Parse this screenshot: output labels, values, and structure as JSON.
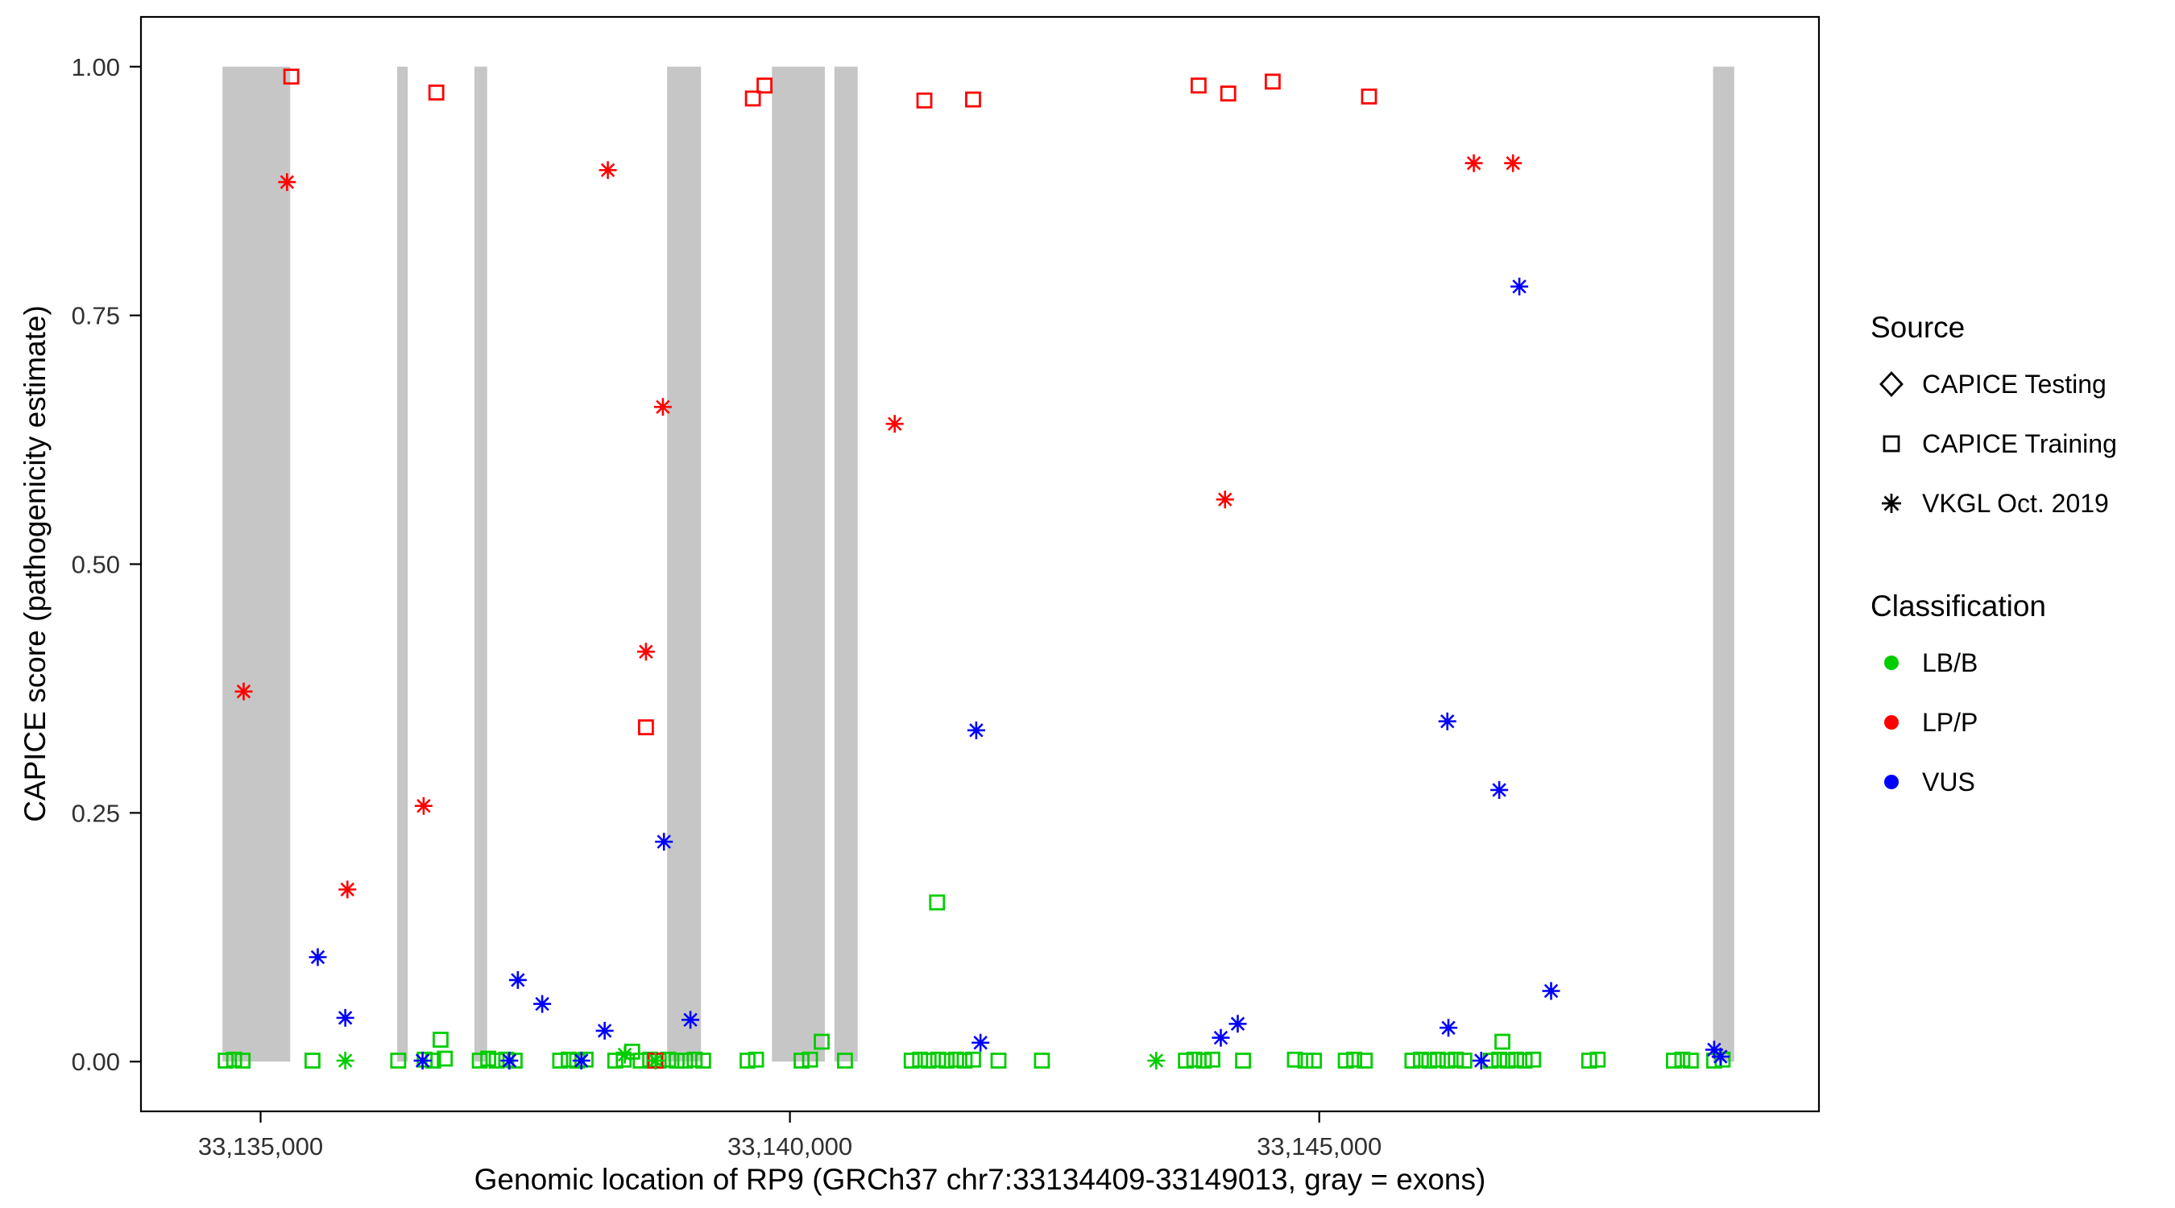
{
  "figure": {
    "x_axis_title": "Genomic location of RP9 (GRCh37 chr7:33134409-33149013, gray = exons)",
    "y_axis_title": "CAPICE score (pathogenicity estimate)"
  },
  "legend": {
    "source": {
      "title": "Source",
      "items": [
        {
          "label": "CAPICE Testing",
          "marker": "diamond-open"
        },
        {
          "label": "CAPICE Training",
          "marker": "square-open"
        },
        {
          "label": "VKGL Oct. 2019",
          "marker": "asterisk"
        }
      ]
    },
    "classification": {
      "title": "Classification",
      "items": [
        {
          "label": "LB/B",
          "color": "#00CD00"
        },
        {
          "label": "LP/P",
          "color": "#FF0000"
        },
        {
          "label": "VUS",
          "color": "#0000FF"
        }
      ]
    }
  },
  "chart_data": {
    "type": "scatter",
    "title": "",
    "xlabel": "Genomic location of RP9 (GRCh37 chr7:33134409-33149013, gray = exons)",
    "ylabel": "CAPICE score (pathogenicity estimate)",
    "x_domain": [
      33133870,
      33149720
    ],
    "y_domain": [
      -0.05,
      1.05
    ],
    "x_ticks": [
      {
        "value": 33135000,
        "label": "33,135,000"
      },
      {
        "value": 33140000,
        "label": "33,140,000"
      },
      {
        "value": 33145000,
        "label": "33,145,000"
      }
    ],
    "y_ticks": [
      {
        "value": 0.0,
        "label": "0.00"
      },
      {
        "value": 0.25,
        "label": "0.25"
      },
      {
        "value": 0.5,
        "label": "0.50"
      },
      {
        "value": 0.75,
        "label": "0.75"
      },
      {
        "value": 1.0,
        "label": "1.00"
      }
    ],
    "grid": false,
    "legend_position": "right",
    "exon_color": "#C6C6C6",
    "exons_note": "gray vertical bands mark exons, drawn from score 0 to 1",
    "exons": [
      [
        33134640,
        33135280
      ],
      [
        33136290,
        33136390
      ],
      [
        33137020,
        33137140
      ],
      [
        33138840,
        33139160
      ],
      [
        33139830,
        33140330
      ],
      [
        33140420,
        33140640
      ],
      [
        33148720,
        33148920
      ]
    ],
    "series": [
      {
        "name": "CAPICE Testing",
        "source": "CAPICE Testing",
        "classification": "",
        "marker": "diamond-open",
        "color": "#000000",
        "points": []
      },
      {
        "name": "CAPICE Training / LB/B",
        "source": "CAPICE Training",
        "classification": "LB/B",
        "marker": "square-open",
        "color": "#00CD00",
        "points": [
          [
            33134670,
            0.001
          ],
          [
            33134750,
            0.002
          ],
          [
            33134830,
            0.001
          ],
          [
            33135490,
            0.001
          ],
          [
            33136300,
            0.001
          ],
          [
            33136550,
            0.002
          ],
          [
            33136630,
            0.001
          ],
          [
            33136700,
            0.022
          ],
          [
            33136740,
            0.003
          ],
          [
            33137070,
            0.001
          ],
          [
            33137150,
            0.003
          ],
          [
            33137230,
            0.001
          ],
          [
            33137320,
            0.002
          ],
          [
            33137400,
            0.001
          ],
          [
            33137830,
            0.001
          ],
          [
            33137910,
            0.002
          ],
          [
            33137990,
            0.001
          ],
          [
            33138070,
            0.002
          ],
          [
            33138350,
            0.001
          ],
          [
            33138430,
            0.002
          ],
          [
            33138510,
            0.01
          ],
          [
            33138590,
            0.001
          ],
          [
            33138680,
            0.002
          ],
          [
            33138760,
            0.001
          ],
          [
            33138850,
            0.002
          ],
          [
            33138930,
            0.001
          ],
          [
            33139010,
            0.001
          ],
          [
            33139100,
            0.002
          ],
          [
            33139180,
            0.001
          ],
          [
            33139600,
            0.001
          ],
          [
            33139680,
            0.002
          ],
          [
            33140110,
            0.001
          ],
          [
            33140190,
            0.002
          ],
          [
            33140300,
            0.02
          ],
          [
            33140520,
            0.001
          ],
          [
            33141150,
            0.001
          ],
          [
            33141230,
            0.002
          ],
          [
            33141310,
            0.001
          ],
          [
            33141390,
            0.16
          ],
          [
            33141400,
            0.002
          ],
          [
            33141480,
            0.001
          ],
          [
            33141570,
            0.002
          ],
          [
            33141650,
            0.001
          ],
          [
            33141730,
            0.002
          ],
          [
            33141970,
            0.001
          ],
          [
            33142380,
            0.001
          ],
          [
            33143740,
            0.001
          ],
          [
            33143820,
            0.002
          ],
          [
            33143910,
            0.001
          ],
          [
            33143990,
            0.002
          ],
          [
            33144280,
            0.001
          ],
          [
            33144770,
            0.002
          ],
          [
            33144870,
            0.001
          ],
          [
            33144950,
            0.001
          ],
          [
            33145250,
            0.001
          ],
          [
            33145330,
            0.002
          ],
          [
            33145430,
            0.001
          ],
          [
            33145880,
            0.001
          ],
          [
            33145960,
            0.002
          ],
          [
            33146040,
            0.001
          ],
          [
            33146120,
            0.002
          ],
          [
            33146210,
            0.001
          ],
          [
            33146290,
            0.002
          ],
          [
            33146370,
            0.001
          ],
          [
            33146620,
            0.001
          ],
          [
            33146700,
            0.002
          ],
          [
            33146730,
            0.02
          ],
          [
            33146780,
            0.001
          ],
          [
            33146860,
            0.002
          ],
          [
            33146940,
            0.001
          ],
          [
            33147020,
            0.002
          ],
          [
            33147550,
            0.001
          ],
          [
            33147630,
            0.002
          ],
          [
            33148350,
            0.001
          ],
          [
            33148430,
            0.002
          ],
          [
            33148510,
            0.001
          ],
          [
            33148730,
            0.001
          ],
          [
            33148810,
            0.002
          ]
        ]
      },
      {
        "name": "CAPICE Training / LP/P",
        "source": "CAPICE Training",
        "classification": "LP/P",
        "marker": "square-open",
        "color": "#FF0000",
        "points": [
          [
            33135290,
            0.99
          ],
          [
            33136660,
            0.974
          ],
          [
            33139650,
            0.968
          ],
          [
            33139760,
            0.981
          ],
          [
            33141270,
            0.966
          ],
          [
            33141730,
            0.967
          ],
          [
            33143860,
            0.981
          ],
          [
            33144140,
            0.973
          ],
          [
            33144560,
            0.985
          ],
          [
            33145470,
            0.97
          ],
          [
            33138640,
            0.336
          ],
          [
            33138730,
            0.001
          ]
        ]
      },
      {
        "name": "VKGL Oct. 2019 / LB/B",
        "source": "VKGL Oct. 2019",
        "classification": "LB/B",
        "marker": "asterisk",
        "color": "#00CD00",
        "points": [
          [
            33135800,
            0.001
          ],
          [
            33138440,
            0.007
          ],
          [
            33138730,
            0.001
          ],
          [
            33143460,
            0.001
          ]
        ]
      },
      {
        "name": "VKGL Oct. 2019 / VUS",
        "source": "VKGL Oct. 2019",
        "classification": "VUS",
        "marker": "asterisk",
        "color": "#0000FF",
        "points": [
          [
            33135540,
            0.105
          ],
          [
            33135800,
            0.044
          ],
          [
            33136530,
            0.001
          ],
          [
            33137350,
            0.001
          ],
          [
            33137430,
            0.082
          ],
          [
            33137660,
            0.058
          ],
          [
            33138030,
            0.001
          ],
          [
            33138250,
            0.031
          ],
          [
            33138810,
            0.221
          ],
          [
            33139060,
            0.042
          ],
          [
            33141760,
            0.333
          ],
          [
            33141800,
            0.019
          ],
          [
            33144070,
            0.024
          ],
          [
            33144230,
            0.038
          ],
          [
            33146210,
            0.342
          ],
          [
            33146220,
            0.034
          ],
          [
            33146530,
            0.001
          ],
          [
            33146700,
            0.273
          ],
          [
            33146890,
            0.779
          ],
          [
            33147190,
            0.071
          ],
          [
            33148730,
            0.012
          ],
          [
            33148790,
            0.005
          ]
        ]
      },
      {
        "name": "VKGL Oct. 2019 / LP/P",
        "source": "VKGL Oct. 2019",
        "classification": "LP/P",
        "marker": "asterisk",
        "color": "#FF0000",
        "points": [
          [
            33134840,
            0.372
          ],
          [
            33135250,
            0.884
          ],
          [
            33135820,
            0.173
          ],
          [
            33136540,
            0.257
          ],
          [
            33138280,
            0.896
          ],
          [
            33138640,
            0.412
          ],
          [
            33138800,
            0.658
          ],
          [
            33140990,
            0.641
          ],
          [
            33144110,
            0.565
          ],
          [
            33146460,
            0.903
          ],
          [
            33146830,
            0.903
          ]
        ]
      }
    ]
  }
}
